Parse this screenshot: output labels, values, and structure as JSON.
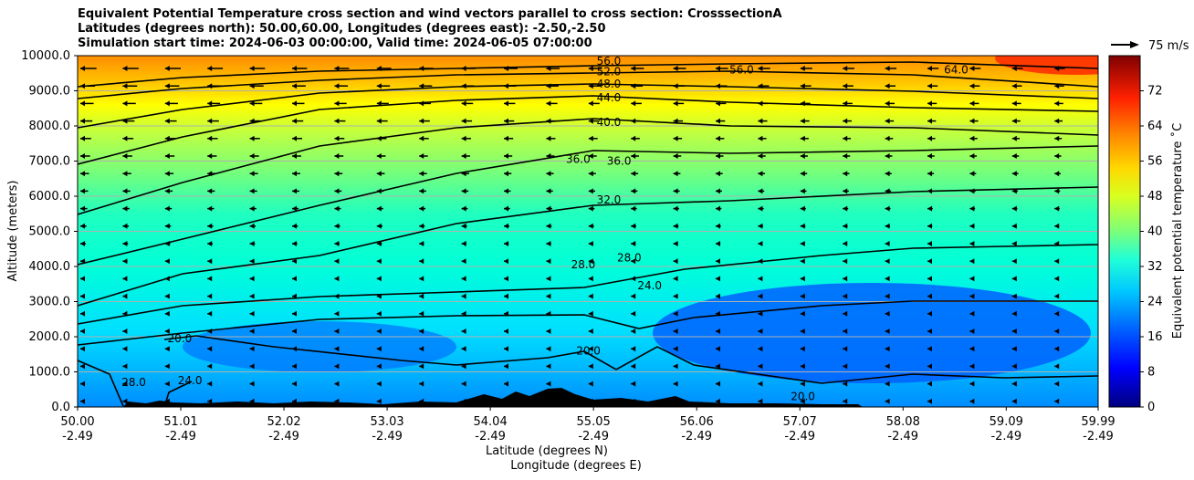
{
  "title": {
    "line1": "Equivalent Potential Temperature cross section and wind vectors parallel to cross section: CrosssectionA",
    "line2": "Latitudes (degrees north): 50.00,60.00, Longitudes (degrees east): -2.50,-2.50",
    "line3": "Simulation start time: 2024-06-03 00:00:00, Valid time: 2024-06-05 07:00:00"
  },
  "chart_data": {
    "type": "contourf",
    "title": "Equivalent Potential Temperature cross section and wind vectors parallel to cross section: CrosssectionA",
    "ylabel": "Altitude (meters)",
    "xlabel_lat": "Latitude (degrees N)",
    "xlabel_lon": "Longitude (degrees E)",
    "ylim": [
      0,
      10000
    ],
    "xlim": [
      50.0,
      59.99
    ],
    "y_ticks": [
      "0.0",
      "1000.0",
      "2000.0",
      "3000.0",
      "4000.0",
      "5000.0",
      "6000.0",
      "7000.0",
      "8000.0",
      "9000.0",
      "10000.0"
    ],
    "x_ticks": [
      {
        "lat": "50.00",
        "lon": "-2.49"
      },
      {
        "lat": "51.01",
        "lon": "-2.49"
      },
      {
        "lat": "52.02",
        "lon": "-2.49"
      },
      {
        "lat": "53.03",
        "lon": "-2.49"
      },
      {
        "lat": "54.04",
        "lon": "-2.49"
      },
      {
        "lat": "55.05",
        "lon": "-2.49"
      },
      {
        "lat": "56.06",
        "lon": "-2.49"
      },
      {
        "lat": "57.07",
        "lon": "-2.49"
      },
      {
        "lat": "58.08",
        "lon": "-2.49"
      },
      {
        "lat": "59.09",
        "lon": "-2.49"
      },
      {
        "lat": "59.99",
        "lon": "-2.49"
      }
    ],
    "colorbar": {
      "label": "Equivalent potential temperature ˚C",
      "range": [
        0,
        80
      ],
      "ticks": [
        "0",
        "8",
        "16",
        "24",
        "32",
        "40",
        "48",
        "56",
        "64",
        "72"
      ]
    },
    "quiver_key": "75 m/s",
    "contour_labels": [
      {
        "text": "56.0",
        "lat": 55.2,
        "alt": 9850
      },
      {
        "text": "52.0",
        "lat": 55.2,
        "alt": 9550
      },
      {
        "text": "48.0",
        "lat": 55.2,
        "alt": 9200
      },
      {
        "text": "44.0",
        "lat": 55.2,
        "alt": 8800
      },
      {
        "text": "40.0",
        "lat": 55.2,
        "alt": 8100
      },
      {
        "text": "36.0",
        "lat": 54.9,
        "alt": 7050
      },
      {
        "text": "36.0",
        "lat": 55.3,
        "alt": 7000
      },
      {
        "text": "32.0",
        "lat": 55.2,
        "alt": 5900
      },
      {
        "text": "28.0",
        "lat": 54.95,
        "alt": 4050
      },
      {
        "text": "28.0",
        "lat": 55.4,
        "alt": 4250
      },
      {
        "text": "24.0",
        "lat": 55.6,
        "alt": 3450
      },
      {
        "text": "20.0",
        "lat": 51.0,
        "alt": 1950
      },
      {
        "text": "20.0",
        "lat": 55.0,
        "alt": 1600
      },
      {
        "text": "20.0",
        "lat": 57.1,
        "alt": 300
      },
      {
        "text": "56.0",
        "lat": 56.5,
        "alt": 9600
      },
      {
        "text": "64.0",
        "lat": 58.6,
        "alt": 9600
      },
      {
        "text": "24.0",
        "lat": 51.1,
        "alt": 750
      },
      {
        "text": "28.0",
        "lat": 50.55,
        "alt": 700
      }
    ]
  }
}
